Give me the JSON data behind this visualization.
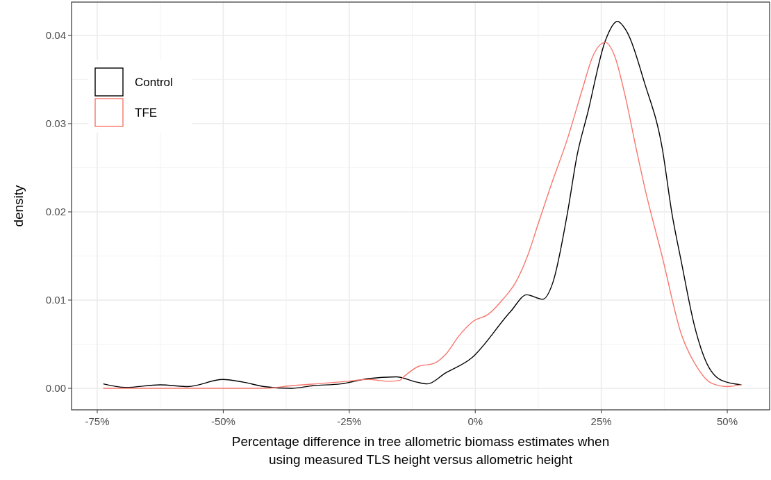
{
  "chart_data": {
    "type": "line",
    "xlabel": "Percentage difference in tree allometric biomass estimates when\nusing measured TLS height versus allometric height",
    "ylabel": "density",
    "xlim": [
      -80.1,
      58.4
    ],
    "ylim": [
      -0.00244,
      0.04378
    ],
    "xticks": [
      {
        "value": -75,
        "label": "-75%"
      },
      {
        "value": -50,
        "label": "-50%"
      },
      {
        "value": -25,
        "label": "-25%"
      },
      {
        "value": 0,
        "label": "0%"
      },
      {
        "value": 25,
        "label": "25%"
      },
      {
        "value": 50,
        "label": "50%"
      }
    ],
    "yticks": [
      {
        "value": 0,
        "label": "0.00"
      },
      {
        "value": 0.01,
        "label": "0.01"
      },
      {
        "value": 0.02,
        "label": "0.02"
      },
      {
        "value": 0.03,
        "label": "0.03"
      },
      {
        "value": 0.04,
        "label": "0.04"
      }
    ],
    "grid": true,
    "legend": "top left",
    "line_style": "solid",
    "series": [
      {
        "name": "Control",
        "color": "#000000",
        "x": [
          -73.8,
          -69.4,
          -62.5,
          -57,
          -50.1,
          -46,
          -41.9,
          -36.4,
          -32.2,
          -26.7,
          -21.2,
          -15.7,
          -11.6,
          -9.5,
          -6,
          -0.8,
          7.0,
          10.2,
          13.4,
          15.4,
          18.3,
          20.2,
          22.3,
          25.8,
          28.2,
          29.9,
          33.6,
          37.1,
          39,
          40.9,
          43.4,
          45.5,
          48.9,
          52.8
        ],
        "values": [
          0.0005,
          0.0001,
          0.0004,
          0.0002,
          0.001,
          0.0007,
          0.0002,
          0.0,
          0.0003,
          0.0005,
          0.0011,
          0.0013,
          0.0007,
          0.0005,
          0.0017,
          0.0034,
          0.0087,
          0.0106,
          0.0101,
          0.012,
          0.0199,
          0.0264,
          0.0312,
          0.0394,
          0.0416,
          0.0406,
          0.0346,
          0.0272,
          0.0199,
          0.0143,
          0.0073,
          0.0034,
          0.0009,
          0.0004
        ]
      },
      {
        "name": "TFE",
        "color": "#f8766d",
        "x": [
          -73.8,
          -41.9,
          -36.4,
          -29.5,
          -25.3,
          -21.2,
          -17.1,
          -15,
          -14.2,
          -11.2,
          -8.3,
          -5.8,
          -3.3,
          -0.4,
          2.6,
          5.5,
          8,
          10.5,
          12.4,
          14.9,
          18.3,
          21.3,
          23.3,
          25.8,
          27.7,
          29.6,
          32.1,
          33.6,
          37.1,
          40.9,
          43.9,
          46.8,
          49.9,
          52.8
        ],
        "values": [
          0,
          0,
          0.0003,
          0.0006,
          0.0008,
          0.001,
          0.0008,
          0.0009,
          0.0013,
          0.0025,
          0.0028,
          0.0039,
          0.0059,
          0.0076,
          0.0084,
          0.0101,
          0.012,
          0.0152,
          0.0185,
          0.0228,
          0.0283,
          0.034,
          0.0376,
          0.0392,
          0.0376,
          0.0335,
          0.0267,
          0.0228,
          0.0149,
          0.0061,
          0.0025,
          0.0006,
          0.0002,
          0.0004
        ]
      }
    ]
  }
}
